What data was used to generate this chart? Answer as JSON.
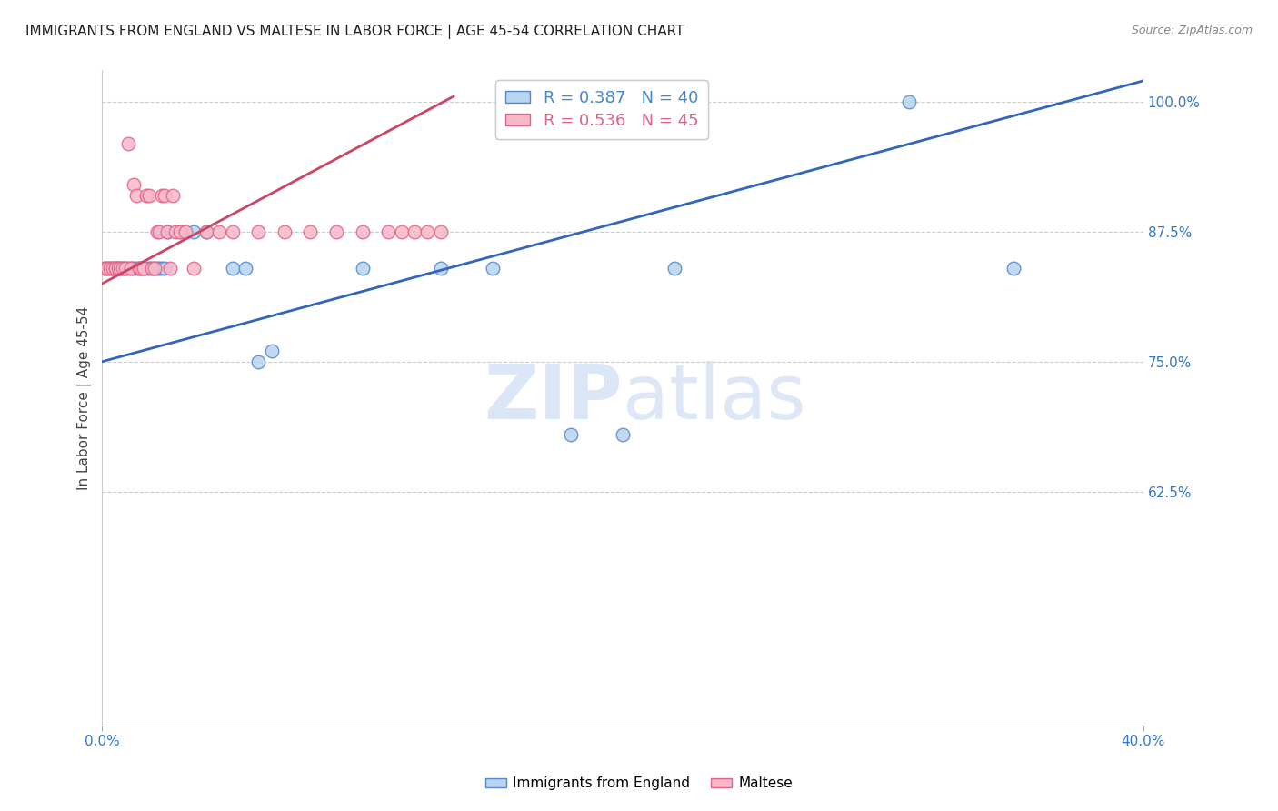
{
  "title": "IMMIGRANTS FROM ENGLAND VS MALTESE IN LABOR FORCE | AGE 45-54 CORRELATION CHART",
  "source": "Source: ZipAtlas.com",
  "ylabel": "In Labor Force | Age 45-54",
  "yticks_pct": [
    100.0,
    87.5,
    75.0,
    62.5
  ],
  "ytick_labels": [
    "100.0%",
    "87.5%",
    "75.0%",
    "62.5%"
  ],
  "xlim": [
    0.0,
    0.4
  ],
  "ylim": [
    0.4,
    1.03
  ],
  "legend_line1": "R = 0.387   N = 40",
  "legend_line2": "R = 0.536   N = 45",
  "legend_color1": "#4488cc",
  "legend_color2": "#dd6688",
  "eng_color_face": "#b8d4ee",
  "eng_color_edge": "#5588cc",
  "mal_color_face": "#f8b8c8",
  "mal_color_edge": "#dd6688",
  "trendline_eng_color": "#3366bb",
  "trendline_mal_color": "#cc4466",
  "eng_x": [
    0.001,
    0.002,
    0.003,
    0.004,
    0.005,
    0.006,
    0.007,
    0.008,
    0.009,
    0.01,
    0.011,
    0.012,
    0.013,
    0.014,
    0.015,
    0.016,
    0.017,
    0.018,
    0.019,
    0.02,
    0.021,
    0.022,
    0.023,
    0.024,
    0.025,
    0.03,
    0.035,
    0.04,
    0.05,
    0.055,
    0.06,
    0.065,
    0.1,
    0.13,
    0.15,
    0.18,
    0.2,
    0.22,
    0.31,
    0.35
  ],
  "eng_y": [
    0.84,
    0.84,
    0.84,
    0.84,
    0.84,
    0.84,
    0.84,
    0.84,
    0.84,
    0.84,
    0.84,
    0.84,
    0.84,
    0.84,
    0.84,
    0.84,
    0.84,
    0.84,
    0.84,
    0.84,
    0.84,
    0.84,
    0.84,
    0.84,
    0.875,
    0.875,
    0.875,
    0.875,
    0.84,
    0.84,
    0.75,
    0.76,
    0.84,
    0.84,
    0.84,
    0.68,
    0.68,
    0.84,
    1.0,
    0.84
  ],
  "mal_x": [
    0.001,
    0.002,
    0.003,
    0.004,
    0.005,
    0.005,
    0.006,
    0.007,
    0.008,
    0.009,
    0.01,
    0.011,
    0.012,
    0.013,
    0.014,
    0.015,
    0.016,
    0.017,
    0.018,
    0.019,
    0.02,
    0.021,
    0.022,
    0.023,
    0.024,
    0.025,
    0.026,
    0.027,
    0.028,
    0.03,
    0.032,
    0.035,
    0.04,
    0.045,
    0.05,
    0.06,
    0.07,
    0.08,
    0.09,
    0.1,
    0.11,
    0.115,
    0.12,
    0.125,
    0.13
  ],
  "mal_y": [
    0.84,
    0.84,
    0.84,
    0.84,
    0.84,
    0.84,
    0.84,
    0.84,
    0.84,
    0.84,
    0.96,
    0.84,
    0.92,
    0.91,
    0.84,
    0.84,
    0.84,
    0.91,
    0.91,
    0.84,
    0.84,
    0.875,
    0.875,
    0.91,
    0.91,
    0.875,
    0.84,
    0.91,
    0.875,
    0.875,
    0.875,
    0.84,
    0.875,
    0.875,
    0.875,
    0.875,
    0.875,
    0.875,
    0.875,
    0.875,
    0.875,
    0.875,
    0.875,
    0.875,
    0.875
  ],
  "trendline_eng": [
    0.0,
    0.75,
    0.4,
    1.02
  ],
  "trendline_mal": [
    0.0,
    0.825,
    0.135,
    1.005
  ],
  "grid_color": "#cccccc",
  "bg_color": "#ffffff",
  "title_fontsize": 11,
  "tick_color": "#3377cc"
}
